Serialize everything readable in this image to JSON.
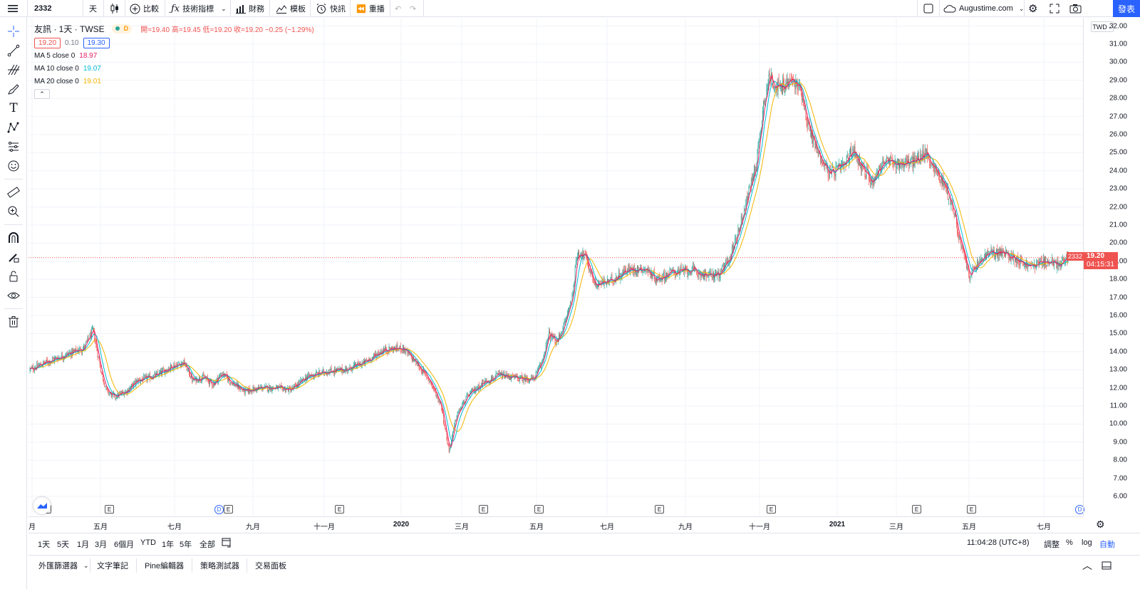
{
  "toolbar": {
    "symbol": "2332",
    "interval": "天",
    "compare": "比較",
    "indicators": "技術指標",
    "financials": "財務",
    "templates": "模板",
    "alert": "快訊",
    "replay": "重播",
    "account": "Augustime.com",
    "publish": "發表"
  },
  "legend": {
    "title": "友訊 · 1天 · TWSE",
    "badge": "D",
    "ohlc": "開=19.40 高=19.45 低=19.20 收=19.20 −0.25 (−1.29%)",
    "bid": "19.20",
    "spread": "0.10",
    "ask": "19.30",
    "ma": [
      {
        "label": "MA 5 close 0",
        "value": "18.97",
        "color": "#e91e63"
      },
      {
        "label": "MA 10 close 0",
        "value": "19.07",
        "color": "#00bcd4"
      },
      {
        "label": "MA 20 close 0",
        "value": "19.01",
        "color": "#f5b400"
      }
    ]
  },
  "price_axis": {
    "currency": "TWD",
    "ticks": [
      "32.00",
      "31.00",
      "30.00",
      "29.00",
      "28.00",
      "27.00",
      "26.00",
      "25.00",
      "24.00",
      "23.00",
      "22.00",
      "21.00",
      "20.00",
      "19.00",
      "18.00",
      "17.00",
      "16.00",
      "15.00",
      "14.00",
      "13.00",
      "12.00",
      "11.00",
      "10.00",
      "9.00",
      "8.00",
      "7.00",
      "6.00"
    ],
    "last_symbol": "2332",
    "last_price": "19.20",
    "countdown": "04:15:31"
  },
  "time_axis": {
    "ticks": [
      {
        "label": "月",
        "bold": false
      },
      {
        "label": "五月",
        "bold": false
      },
      {
        "label": "七月",
        "bold": false
      },
      {
        "label": "九月",
        "bold": false
      },
      {
        "label": "十一月",
        "bold": false
      },
      {
        "label": "2020",
        "bold": true
      },
      {
        "label": "三月",
        "bold": false
      },
      {
        "label": "五月",
        "bold": false
      },
      {
        "label": "七月",
        "bold": false
      },
      {
        "label": "九月",
        "bold": false
      },
      {
        "label": "十一月",
        "bold": false
      },
      {
        "label": "2021",
        "bold": true
      },
      {
        "label": "三月",
        "bold": false
      },
      {
        "label": "五月",
        "bold": false
      },
      {
        "label": "七月",
        "bold": false
      }
    ],
    "event_e": "E",
    "event_d": "D"
  },
  "range_bar": {
    "ranges": [
      "1天",
      "5天",
      "1月",
      "3月",
      "6個月",
      "YTD",
      "1年",
      "5年",
      "全部"
    ],
    "clock": "11:04:28 (UTC+8)",
    "adjust": "調整",
    "percent": "%",
    "log": "log",
    "auto": "自動"
  },
  "bottom_tabs": [
    "外匯篩選器",
    "文字筆記",
    "Pine編輯器",
    "策略測試器",
    "交易面板"
  ],
  "colors": {
    "up": "#26a69a",
    "down": "#ef5350",
    "accent": "#2962ff",
    "grid": "#f0f3fa"
  },
  "chart_data": {
    "type": "candlestick",
    "symbol": "2332",
    "ylim": [
      6,
      32.5
    ],
    "anchors": [
      [
        0,
        13.0
      ],
      [
        20,
        13.4
      ],
      [
        45,
        13.8
      ],
      [
        70,
        14.2
      ],
      [
        82,
        15.2
      ],
      [
        92,
        13.0
      ],
      [
        100,
        11.8
      ],
      [
        110,
        11.5
      ],
      [
        125,
        11.8
      ],
      [
        140,
        12.4
      ],
      [
        165,
        12.7
      ],
      [
        185,
        13.2
      ],
      [
        200,
        13.4
      ],
      [
        212,
        12.4
      ],
      [
        225,
        12.6
      ],
      [
        238,
        12.2
      ],
      [
        250,
        12.8
      ],
      [
        265,
        12.2
      ],
      [
        280,
        11.8
      ],
      [
        300,
        12.0
      ],
      [
        320,
        12.0
      ],
      [
        340,
        11.9
      ],
      [
        360,
        12.6
      ],
      [
        385,
        12.9
      ],
      [
        410,
        13.0
      ],
      [
        435,
        13.4
      ],
      [
        460,
        14.1
      ],
      [
        485,
        14.2
      ],
      [
        502,
        13.4
      ],
      [
        520,
        12.4
      ],
      [
        535,
        11.0
      ],
      [
        545,
        8.5
      ],
      [
        555,
        10.5
      ],
      [
        570,
        11.6
      ],
      [
        590,
        12.3
      ],
      [
        610,
        12.7
      ],
      [
        640,
        12.5
      ],
      [
        655,
        12.5
      ],
      [
        665,
        13.3
      ],
      [
        675,
        15.0
      ],
      [
        685,
        14.5
      ],
      [
        695,
        15.5
      ],
      [
        705,
        17.0
      ],
      [
        712,
        19.5
      ],
      [
        722,
        19.3
      ],
      [
        735,
        17.7
      ],
      [
        755,
        17.9
      ],
      [
        775,
        18.5
      ],
      [
        800,
        18.6
      ],
      [
        815,
        18.0
      ],
      [
        835,
        18.4
      ],
      [
        860,
        18.5
      ],
      [
        880,
        18.2
      ],
      [
        898,
        18.3
      ],
      [
        910,
        19.2
      ],
      [
        920,
        20.5
      ],
      [
        930,
        22.0
      ],
      [
        945,
        24.5
      ],
      [
        955,
        28.0
      ],
      [
        962,
        29.2
      ],
      [
        975,
        28.5
      ],
      [
        990,
        29.0
      ],
      [
        1003,
        28.5
      ],
      [
        1012,
        26.5
      ],
      [
        1025,
        25.0
      ],
      [
        1040,
        23.8
      ],
      [
        1060,
        24.3
      ],
      [
        1070,
        25.2
      ],
      [
        1085,
        24.0
      ],
      [
        1095,
        23.4
      ],
      [
        1110,
        24.5
      ],
      [
        1130,
        24.4
      ],
      [
        1150,
        24.5
      ],
      [
        1165,
        25.0
      ],
      [
        1178,
        24.0
      ],
      [
        1190,
        23.2
      ],
      [
        1200,
        22.0
      ],
      [
        1210,
        20.0
      ],
      [
        1222,
        18.2
      ],
      [
        1230,
        18.7
      ],
      [
        1245,
        19.4
      ],
      [
        1262,
        19.5
      ],
      [
        1280,
        19.2
      ],
      [
        1300,
        18.7
      ],
      [
        1320,
        19.0
      ],
      [
        1340,
        18.8
      ],
      [
        1350,
        19.2
      ]
    ]
  }
}
